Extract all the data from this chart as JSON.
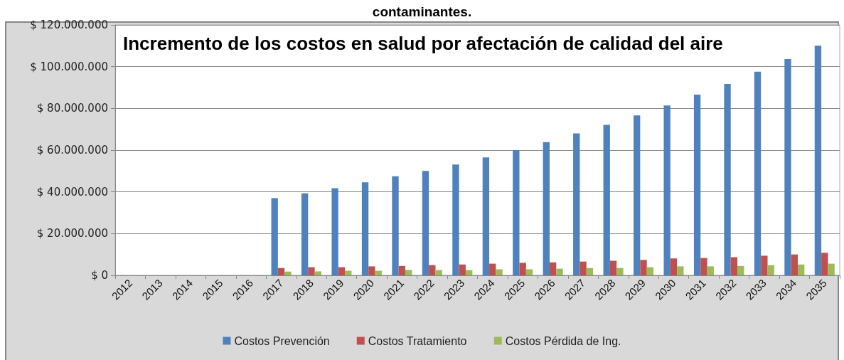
{
  "chart_data": {
    "type": "bar",
    "title": "Incremento de los costos en salud por afectación de calidad del aire",
    "annotations": [
      "contaminantes."
    ],
    "categories": [
      "2012",
      "2013",
      "2014",
      "2015",
      "2016",
      "2017",
      "2018",
      "2019",
      "2020",
      "2021",
      "2022",
      "2023",
      "2024",
      "2025",
      "2026",
      "2027",
      "2028",
      "2029",
      "2030",
      "2031",
      "2032",
      "2033",
      "2034",
      "2035"
    ],
    "series": [
      {
        "name": "Costos Prevención",
        "color": "#4f81bd",
        "values": [
          null,
          null,
          null,
          null,
          null,
          37000000,
          39300000,
          41800000,
          44600000,
          47500000,
          50000000,
          53100000,
          56500000,
          60000000,
          63800000,
          68000000,
          72100000,
          76600000,
          81400000,
          86600000,
          91700000,
          97600000,
          103600000,
          110000000
        ]
      },
      {
        "name": "Costos Tratamiento",
        "color": "#c0504d",
        "values": [
          null,
          null,
          null,
          null,
          null,
          3500000,
          3900000,
          3900000,
          4300000,
          4500000,
          4900000,
          5200000,
          5600000,
          6000000,
          6200000,
          6600000,
          7000000,
          7400000,
          8100000,
          8300000,
          8700000,
          9400000,
          10000000,
          10800000
        ]
      },
      {
        "name": "Costos Pérdida de Ing.",
        "color": "#9bbb59",
        "values": [
          null,
          null,
          null,
          null,
          null,
          1800000,
          1900000,
          2200000,
          2200000,
          2600000,
          2500000,
          2500000,
          2900000,
          2900000,
          3200000,
          3500000,
          3500000,
          3900000,
          4300000,
          4300000,
          4500000,
          4900000,
          5200000,
          5600000
        ]
      }
    ],
    "ylim": [
      0,
      120000000
    ],
    "yticks": [
      {
        "value": 0,
        "label": "$ 0"
      },
      {
        "value": 20000000,
        "label": "$ 20.000.000"
      },
      {
        "value": 40000000,
        "label": "$ 40.000.000"
      },
      {
        "value": 60000000,
        "label": "$ 60.000.000"
      },
      {
        "value": 80000000,
        "label": "$ 80.000.000"
      },
      {
        "value": 100000000,
        "label": "$ 100.000.000"
      },
      {
        "value": 120000000,
        "label": "$ 120.000.000"
      }
    ],
    "grid": "y",
    "legend": "bottom"
  }
}
